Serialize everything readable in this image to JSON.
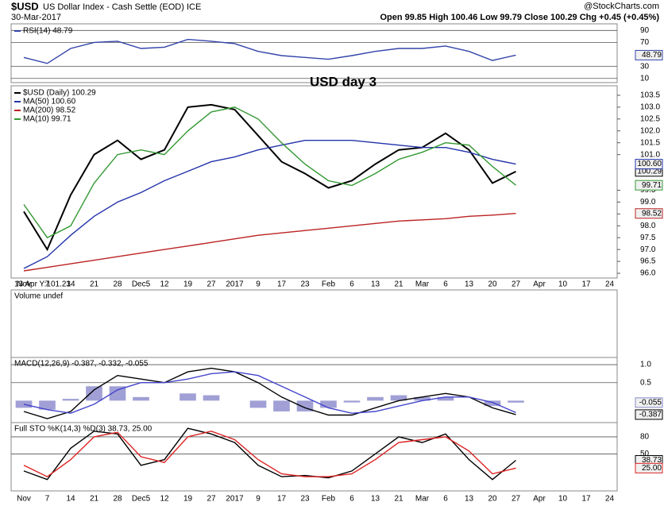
{
  "header": {
    "symbol": "$USD",
    "name": "US Dollar Index - Cash Settle (EOD) ICE",
    "date": "30-Mar-2017",
    "quote": "Open 99.85  High 100.46  Low 99.79  Close 100.29  Chg +0.45 (+0.45%)",
    "brand": "@StockCharts.com"
  },
  "volume": {
    "title": "Volume undef"
  },
  "chart_data": [
    {
      "type": "line",
      "ylim": [
        3,
        101
      ],
      "yticks": [
        10,
        30,
        70,
        90
      ],
      "grid": true,
      "series": [
        {
          "name": "RSI(14) 48.79",
          "color": "#3344aa",
          "values": [
            45,
            35,
            60,
            70,
            72,
            60,
            62,
            75,
            72,
            68,
            55,
            48,
            45,
            42,
            48,
            55,
            60,
            60,
            64,
            55,
            40,
            48.79,
            null,
            null,
            null,
            null
          ],
          "value_label": "48.79"
        }
      ]
    },
    {
      "type": "line",
      "ylim": [
        95.8,
        103.9
      ],
      "grid": false,
      "yticks": [
        {
          "value": 96,
          "label": "96.0"
        },
        96.5,
        {
          "value": 97,
          "label": "97.0"
        },
        97.5,
        {
          "value": 98,
          "label": "98.0"
        },
        98.5,
        {
          "value": 99,
          "label": "99.0"
        },
        99.5,
        {
          "value": 101,
          "label": "101.0"
        },
        101.5,
        {
          "value": 102,
          "label": "102.0"
        },
        102.5,
        {
          "value": 103,
          "label": "103.0"
        },
        103.5
      ],
      "annotations": [
        "USD day 3",
        "13 Apr Y:101.23"
      ],
      "categories": [
        "Nov",
        "7",
        "14",
        "21",
        "28",
        "Dec5",
        "12",
        "19",
        "27",
        "2017",
        "9",
        "17",
        "23",
        "Feb",
        "6",
        "13",
        "21",
        "Mar",
        "6",
        "13",
        "20",
        "27",
        "Apr",
        "10",
        "17",
        "24"
      ],
      "series": [
        {
          "name": "$USD (Daily) 100.29",
          "color": "#000000",
          "values": [
            98.6,
            97.0,
            99.3,
            101.0,
            101.6,
            100.8,
            101.2,
            103.0,
            103.1,
            102.9,
            101.8,
            100.7,
            100.2,
            99.6,
            99.9,
            100.6,
            101.2,
            101.3,
            101.9,
            101.2,
            99.8,
            100.29,
            null,
            null,
            null,
            null
          ],
          "value_label": "100.29"
        },
        {
          "name": "MA(50) 100.60",
          "color": "#2233aa",
          "values": [
            96.2,
            96.7,
            97.6,
            98.4,
            99.0,
            99.4,
            99.9,
            100.3,
            100.7,
            100.9,
            101.2,
            101.4,
            101.6,
            101.6,
            101.6,
            101.5,
            101.4,
            101.3,
            101.3,
            101.1,
            100.8,
            100.6,
            null,
            null,
            null,
            null
          ],
          "value_label": "100.60"
        },
        {
          "name": "MA(200) 98.52",
          "color": "#bb2222",
          "values": [
            96.1,
            96.25,
            96.4,
            96.55,
            96.7,
            96.85,
            97.0,
            97.15,
            97.3,
            97.45,
            97.6,
            97.7,
            97.8,
            97.9,
            98.0,
            98.1,
            98.2,
            98.25,
            98.3,
            98.4,
            98.45,
            98.52,
            null,
            null,
            null,
            null
          ],
          "value_label": "98.52"
        },
        {
          "name": "MA(10) 99.71",
          "color": "#339933",
          "values": [
            98.9,
            97.5,
            98.0,
            99.8,
            101.0,
            101.2,
            101.0,
            102.0,
            102.8,
            103.0,
            102.5,
            101.5,
            100.6,
            99.9,
            99.7,
            100.2,
            100.8,
            101.1,
            101.5,
            101.4,
            100.5,
            99.71,
            null,
            null,
            null,
            null
          ],
          "value_label": "99.71"
        }
      ]
    },
    {
      "type": "line",
      "title": "MACD(12,26,9) -0.387, -0.332, -0.055",
      "ylim": [
        -0.61,
        1.2
      ],
      "yticks": [
        {
          "value": 1,
          "label": "1.0"
        },
        0.5
      ],
      "grid": true,
      "series": [
        {
          "type": "bar",
          "color": "#8888cc",
          "values": [
            -0.2,
            -0.25,
            0.05,
            0.4,
            0.4,
            0.1,
            0,
            0.2,
            0.15,
            0,
            -0.2,
            -0.3,
            -0.3,
            -0.2,
            -0.05,
            0.1,
            0.15,
            0.1,
            0.1,
            0,
            -0.15,
            -0.055,
            null,
            null,
            null,
            null
          ],
          "value_label": "-0.055"
        },
        {
          "color": "#000000",
          "values": [
            -0.3,
            -0.5,
            -0.3,
            0.3,
            0.7,
            0.6,
            0.5,
            0.8,
            0.9,
            0.8,
            0.5,
            0.1,
            -0.2,
            -0.4,
            -0.4,
            -0.2,
            0.0,
            0.1,
            0.2,
            0.1,
            -0.2,
            -0.387,
            null,
            null,
            null,
            null
          ],
          "value_label": "-0.387"
        },
        {
          "color": "#4444cc",
          "values": [
            -0.1,
            -0.25,
            -0.35,
            -0.1,
            0.3,
            0.5,
            0.5,
            0.6,
            0.75,
            0.8,
            0.7,
            0.4,
            0.1,
            -0.2,
            -0.35,
            -0.3,
            -0.15,
            0.0,
            0.1,
            0.1,
            -0.05,
            -0.332,
            null,
            null,
            null,
            null
          ]
        }
      ]
    },
    {
      "type": "line",
      "title": "Full STO %K(14,3) %D(3) 38.73, 25.00",
      "ylim": [
        -15,
        105
      ],
      "yticks": [
        50,
        80
      ],
      "grid": true,
      "categories": [
        "Nov",
        "7",
        "14",
        "21",
        "28",
        "Dec5",
        "12",
        "19",
        "27",
        "2017",
        "9",
        "17",
        "23",
        "Feb",
        "6",
        "13",
        "21",
        "Mar",
        "6",
        "13",
        "20",
        "27",
        "Apr",
        "10",
        "17",
        "24"
      ],
      "series": [
        {
          "color": "#000000",
          "values": [
            20,
            5,
            60,
            90,
            85,
            30,
            40,
            95,
            85,
            70,
            30,
            10,
            12,
            8,
            20,
            50,
            80,
            70,
            85,
            40,
            5,
            38.73,
            null,
            null,
            null,
            null
          ],
          "value_label": "38.73"
        },
        {
          "color": "#dd2222",
          "values": [
            30,
            10,
            40,
            80,
            88,
            45,
            35,
            80,
            90,
            75,
            40,
            15,
            10,
            10,
            15,
            40,
            70,
            75,
            80,
            55,
            15,
            25.0,
            null,
            null,
            null,
            null
          ],
          "value_label": "25.00"
        }
      ]
    }
  ]
}
